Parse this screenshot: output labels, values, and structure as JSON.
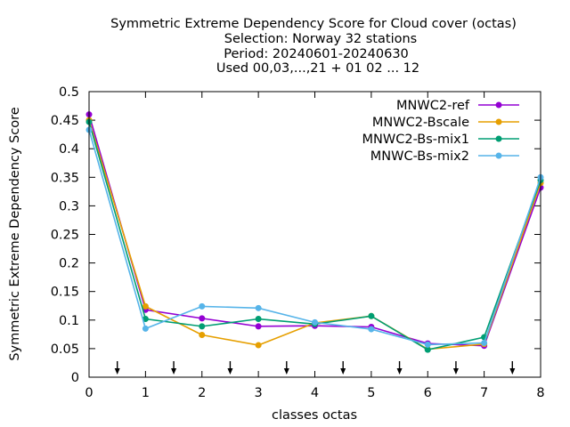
{
  "chart_data": {
    "type": "line",
    "title_lines": [
      "Symmetric Extreme Dependency Score  for Cloud cover (octas)",
      "Selection: Norway     32 stations",
      "Period: 20240601-20240630",
      "Used 00,03,...,21 + 01 02 ... 12"
    ],
    "xlabel": "classes octas",
    "ylabel": "Symmetric Extreme Dependency Score",
    "xlim": [
      0,
      8
    ],
    "ylim": [
      0,
      0.5
    ],
    "x_ticks": [
      "0",
      "1",
      "2",
      "3",
      "4",
      "5",
      "6",
      "7",
      "8"
    ],
    "y_ticks": [
      "0",
      "0.05",
      "0.1",
      "0.15",
      "0.2",
      "0.25",
      "0.3",
      "0.35",
      "0.4",
      "0.45",
      "0.5"
    ],
    "arrow_markers_x": [
      0.5,
      1.5,
      2.5,
      3.5,
      4.5,
      5.5,
      6.5,
      7.5
    ],
    "legend_position": "top-right",
    "x": [
      0,
      1,
      2,
      3,
      4,
      5,
      6,
      7,
      8
    ],
    "series": [
      {
        "name": "MNWC2-ref",
        "color": "#9400d3",
        "values": [
          0.46,
          0.118,
          0.103,
          0.089,
          0.09,
          0.088,
          0.059,
          0.055,
          0.332
        ]
      },
      {
        "name": "MNWC2-Bscale",
        "color": "#e69f00",
        "values": [
          0.45,
          0.124,
          0.074,
          0.056,
          0.095,
          0.107,
          0.049,
          0.058,
          0.34
        ]
      },
      {
        "name": "MNWC2-Bs-mix1",
        "color": "#009e73",
        "values": [
          0.447,
          0.102,
          0.089,
          0.102,
          0.093,
          0.107,
          0.048,
          0.07,
          0.345
        ]
      },
      {
        "name": "MNWC-Bs-mix2",
        "color": "#56b4e9",
        "values": [
          0.433,
          0.085,
          0.124,
          0.121,
          0.096,
          0.084,
          0.057,
          0.06,
          0.35
        ]
      }
    ]
  }
}
